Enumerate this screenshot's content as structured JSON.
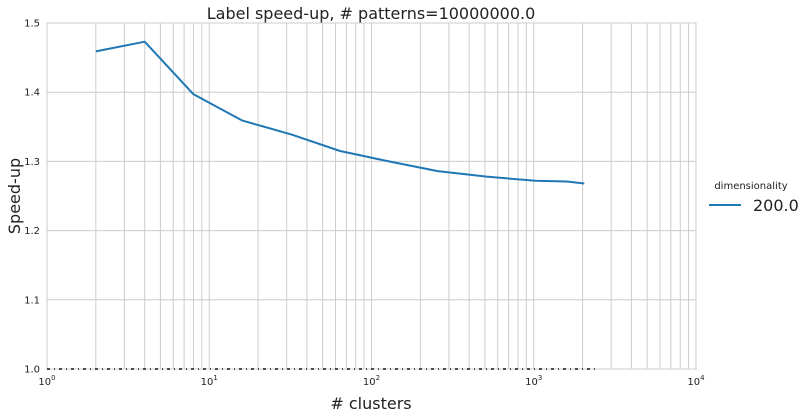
{
  "chart_data": {
    "type": "line",
    "title": "Label speed-up, # patterns=10000000.0",
    "xlabel": "# clusters",
    "ylabel": "Speed-up",
    "xscale": "log",
    "xlim": [
      1,
      10000
    ],
    "ylim": [
      1.0,
      1.5
    ],
    "grid": true,
    "x_ticks": [
      {
        "value": 1,
        "base": "10",
        "exp": "0"
      },
      {
        "value": 10,
        "base": "10",
        "exp": "1"
      },
      {
        "value": 100,
        "base": "10",
        "exp": "2"
      },
      {
        "value": 1000,
        "base": "10",
        "exp": "3"
      },
      {
        "value": 10000,
        "base": "10",
        "exp": "4"
      }
    ],
    "y_ticks": [
      {
        "value": 1.0,
        "label": "1.0"
      },
      {
        "value": 1.1,
        "label": "1.1"
      },
      {
        "value": 1.2,
        "label": "1.2"
      },
      {
        "value": 1.3,
        "label": "1.3"
      },
      {
        "value": 1.4,
        "label": "1.4"
      },
      {
        "value": 1.5,
        "label": "1.5"
      }
    ],
    "legend": {
      "title": "dimensionality",
      "placement": "right"
    },
    "series": [
      {
        "name": "200.0",
        "color": "#1f77b4",
        "x": [
          2,
          4,
          8,
          16,
          32,
          64,
          128,
          256,
          512,
          1024,
          1600,
          2048
        ],
        "y": [
          1.459,
          1.473,
          1.397,
          1.359,
          1.339,
          1.315,
          1.3,
          1.286,
          1.278,
          1.272,
          1.271,
          1.268
        ]
      }
    ]
  }
}
